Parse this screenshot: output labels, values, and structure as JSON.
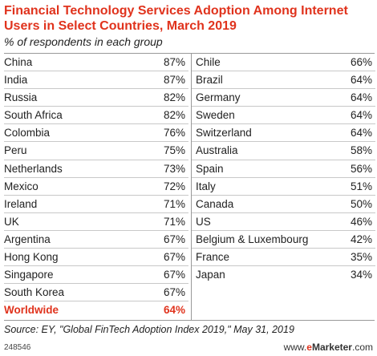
{
  "header": {
    "title": "Financial Technology Services Adoption Among Internet Users in Select Countries, March 2019",
    "subtitle": "% of respondents in each group"
  },
  "chart_data": {
    "type": "table",
    "title": "Financial Technology Services Adoption Among Internet Users in Select Countries, March 2019",
    "subtitle": "% of respondents in each group",
    "columns": [
      [
        {
          "name": "China",
          "value": "87%"
        },
        {
          "name": "India",
          "value": "87%"
        },
        {
          "name": "Russia",
          "value": "82%"
        },
        {
          "name": "South Africa",
          "value": "82%"
        },
        {
          "name": "Colombia",
          "value": "76%"
        },
        {
          "name": "Peru",
          "value": "75%"
        },
        {
          "name": "Netherlands",
          "value": "73%"
        },
        {
          "name": "Mexico",
          "value": "72%"
        },
        {
          "name": "Ireland",
          "value": "71%"
        },
        {
          "name": "UK",
          "value": "71%"
        },
        {
          "name": "Argentina",
          "value": "67%"
        },
        {
          "name": "Hong Kong",
          "value": "67%"
        },
        {
          "name": "Singapore",
          "value": "67%"
        },
        {
          "name": "South Korea",
          "value": "67%"
        },
        {
          "name": "Worldwide",
          "value": "64%",
          "highlight": true
        }
      ],
      [
        {
          "name": "Chile",
          "value": "66%"
        },
        {
          "name": "Brazil",
          "value": "64%"
        },
        {
          "name": "Germany",
          "value": "64%"
        },
        {
          "name": "Sweden",
          "value": "64%"
        },
        {
          "name": "Switzerland",
          "value": "64%"
        },
        {
          "name": "Australia",
          "value": "58%"
        },
        {
          "name": "Spain",
          "value": "56%"
        },
        {
          "name": "Italy",
          "value": "51%"
        },
        {
          "name": "Canada",
          "value": "50%"
        },
        {
          "name": "US",
          "value": "46%"
        },
        {
          "name": "Belgium & Luxembourg",
          "value": "42%"
        },
        {
          "name": "France",
          "value": "35%"
        },
        {
          "name": "Japan",
          "value": "34%"
        }
      ]
    ]
  },
  "footer": {
    "source": "Source: EY, \"Global FinTech Adoption Index 2019,\" May 31, 2019",
    "chart_id": "248546",
    "brand_prefix": "www.",
    "brand_e": "e",
    "brand_rest": "Marketer",
    "brand_suffix": ".com"
  },
  "colors": {
    "accent": "#e0331d"
  }
}
